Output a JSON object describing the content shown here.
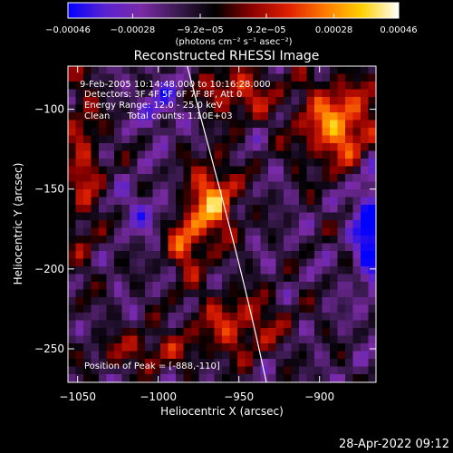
{
  "chart_data": {
    "type": "heatmap",
    "title": "Reconstructed RHESSI Image",
    "xlabel": "Heliocentric X (arcsec)",
    "ylabel": "Heliocentric Y (arcsec)",
    "xlim": [
      -1056,
      -865
    ],
    "ylim": [
      -271,
      -73
    ],
    "x_ticks": [
      {
        "value": -1050,
        "label": "−1050"
      },
      {
        "value": -1000,
        "label": "−1000"
      },
      {
        "value": -950,
        "label": "−950"
      },
      {
        "value": -900,
        "label": "−900"
      }
    ],
    "y_ticks": [
      {
        "value": -100,
        "label": "−100"
      },
      {
        "value": -150,
        "label": "−150"
      },
      {
        "value": -200,
        "label": "−200"
      },
      {
        "value": -250,
        "label": "−250"
      }
    ],
    "colorbar": {
      "min": -0.00046,
      "max": 0.00046,
      "colormap": [
        "#0000ff",
        "#5a22d0",
        "#7a2aa6",
        "#3a1a4e",
        "#000000",
        "#8a0000",
        "#e02000",
        "#ff7a00",
        "#ffd000",
        "#ffffff"
      ],
      "ticks": [
        {
          "value": -0.00046,
          "label": "−0.00046"
        },
        {
          "value": -0.00028,
          "label": "−0.00028"
        },
        {
          "value": -9.2e-05,
          "label": "−9.2e−05"
        },
        {
          "value": 9.2e-05,
          "label": "9.2e−05"
        },
        {
          "value": 0.00028,
          "label": "0.00028"
        },
        {
          "value": 0.00046,
          "label": "0.00046"
        }
      ],
      "unit_label": "(photons cm⁻² s⁻¹ asec⁻²)"
    },
    "annotations": [
      "9-Feb-2005 10:14:48.000 to 10:16:28.000",
      "Detectors: 3F 4F 5F 6F 7F 8F, Att 0",
      "Energy Range: 12.0 - 25.0 keV",
      "Clean      Total counts: 1.10E+03"
    ],
    "peak_annotation": "Position of Peak = [-888,-110]",
    "peak_position": [
      -888,
      -110
    ],
    "limb_curve": [
      [
        -982,
        -73
      ],
      [
        -962,
        -150
      ],
      [
        -948,
        -200
      ],
      [
        -933,
        -271
      ]
    ],
    "limb_color": "#ffffff",
    "grid": false
  },
  "footer": {
    "timestamp": "28-Apr-2022 09:12"
  }
}
